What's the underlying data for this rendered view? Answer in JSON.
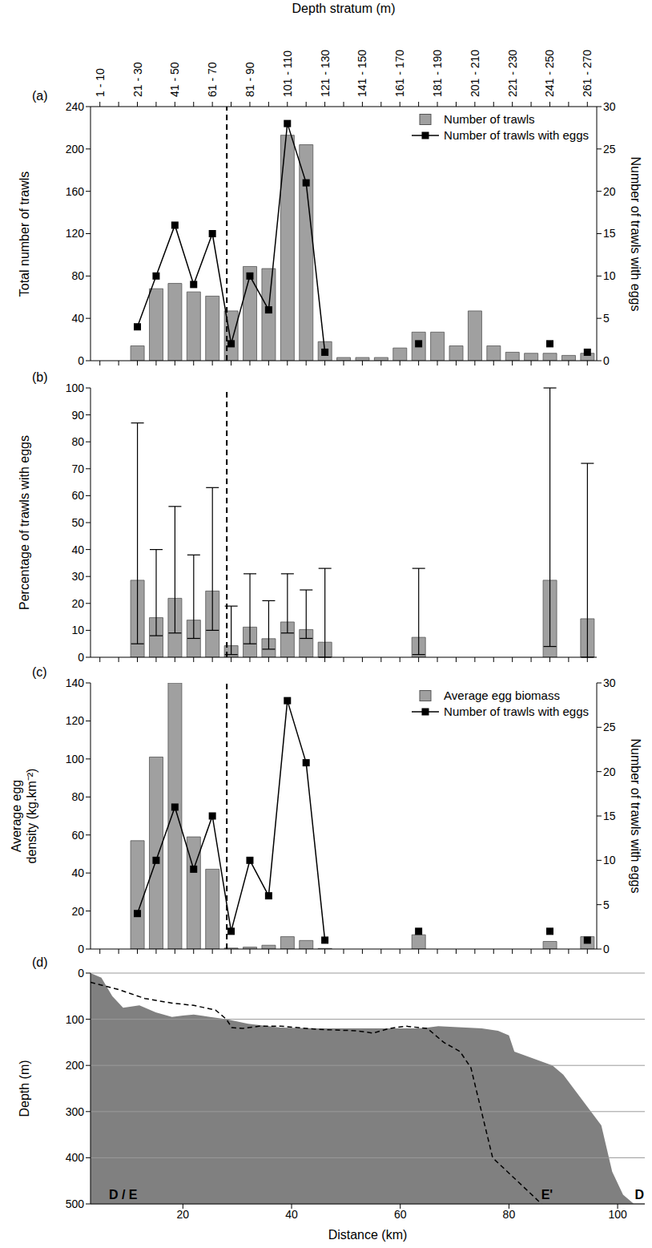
{
  "chart_data": [
    {
      "type": "bar",
      "panel_label": "(a)",
      "x_label": "Depth stratum (m)",
      "y_label": "Total number of trawls",
      "y2_label": "Number of trawls with eggs",
      "categories": [
        "1 - 10",
        null,
        "21 - 30",
        null,
        "41 - 50",
        null,
        "61 - 70",
        null,
        "81 - 90",
        null,
        "101 - 110",
        null,
        "121 - 130",
        null,
        "141 - 150",
        null,
        "161 - 170",
        null,
        "181 - 190",
        null,
        "201 - 210",
        null,
        "221 - 230",
        null,
        "241 - 250",
        null,
        "261 - 270"
      ],
      "series": [
        {
          "name": "Number of trawls",
          "type": "bar",
          "color": "#a0a0a0",
          "values": [
            null,
            null,
            14,
            68,
            73,
            65,
            61,
            47,
            89,
            87,
            213,
            204,
            18,
            3,
            3,
            3,
            12,
            27,
            27,
            14,
            47,
            14,
            8,
            7,
            7,
            5,
            7
          ]
        },
        {
          "name": "Number of trawls with eggs",
          "type": "line",
          "axis": "y2",
          "color": "#000000",
          "marker": "square",
          "values": [
            null,
            null,
            4,
            10,
            16,
            9,
            15,
            2,
            10,
            6,
            28,
            21,
            1,
            null,
            null,
            null,
            null,
            2,
            null,
            null,
            null,
            null,
            null,
            null,
            2,
            null,
            1
          ]
        }
      ],
      "ylim": [
        0,
        240
      ],
      "yticks": [
        0,
        40,
        80,
        120,
        160,
        200,
        240
      ],
      "y2lim": [
        0,
        30
      ],
      "y2ticks": [
        0,
        5,
        10,
        15,
        20,
        25,
        30
      ],
      "legend": "top-right",
      "divider_after": "61 - 70"
    },
    {
      "type": "bar",
      "panel_label": "(b)",
      "y_label": "Percentage of trawls with eggs",
      "categories": [
        "1 - 10",
        null,
        "21 - 30",
        null,
        "41 - 50",
        null,
        "61 - 70",
        null,
        "81 - 90",
        null,
        "101 - 110",
        null,
        "121 - 130",
        null,
        "141 - 150",
        null,
        "161 - 170",
        null,
        "181 - 190",
        null,
        "201 - 210",
        null,
        "221 - 230",
        null,
        "241 - 250",
        null,
        "261 - 270"
      ],
      "series": [
        {
          "name": "Percentage of trawls with eggs",
          "type": "bar",
          "color": "#a0a0a0",
          "values": [
            null,
            null,
            28.6,
            14.7,
            21.9,
            13.8,
            24.6,
            4.3,
            11.2,
            6.9,
            13.1,
            10.3,
            5.6,
            0,
            0,
            0,
            0,
            7.4,
            0,
            0,
            0,
            0,
            0,
            0,
            28.6,
            0,
            14.3
          ],
          "ci_lower": [
            null,
            null,
            5,
            8,
            9,
            7,
            10,
            1,
            5,
            3,
            9,
            7,
            0,
            null,
            null,
            null,
            null,
            1,
            null,
            null,
            null,
            null,
            null,
            null,
            4,
            null,
            0
          ],
          "ci_upper": [
            null,
            null,
            87,
            40,
            56,
            38,
            63,
            19,
            31,
            21,
            31,
            25,
            33,
            null,
            null,
            null,
            null,
            33,
            null,
            null,
            null,
            null,
            null,
            null,
            100,
            null,
            72
          ]
        }
      ],
      "ylim": [
        0,
        100
      ],
      "yticks": [
        0,
        10,
        20,
        30,
        40,
        50,
        60,
        70,
        80,
        90,
        100
      ],
      "tick_labels": "y",
      "divider_after": "61 - 70"
    },
    {
      "type": "bar",
      "panel_label": "(c)",
      "y_label": "Average egg density (kg.km⁻²)",
      "y2_label": "Number of trawls with eggs",
      "categories": [
        "1 - 10",
        null,
        "21 - 30",
        null,
        "41 - 50",
        null,
        "61 - 70",
        null,
        "81 - 90",
        null,
        "101 - 110",
        null,
        "121 - 130",
        null,
        "141 - 150",
        null,
        "161 - 170",
        null,
        "181 - 190",
        null,
        "201 - 210",
        null,
        "221 - 230",
        null,
        "241 - 250",
        null,
        "261 - 270"
      ],
      "series": [
        {
          "name": "Average egg biomass",
          "type": "bar",
          "color": "#a0a0a0",
          "values": [
            null,
            null,
            57,
            101,
            140,
            59,
            42,
            0.5,
            1,
            2,
            6.5,
            4.5,
            0.3,
            0,
            0,
            0,
            0,
            7.5,
            0,
            0,
            0,
            0,
            0,
            0,
            4,
            0,
            6.5
          ]
        },
        {
          "name": "Number of trawls with eggs",
          "type": "line",
          "axis": "y2",
          "color": "#000000",
          "marker": "square",
          "values": [
            null,
            null,
            4,
            10,
            16,
            9,
            15,
            2,
            10,
            6,
            28,
            21,
            1,
            null,
            null,
            null,
            null,
            2,
            null,
            null,
            null,
            null,
            null,
            null,
            2,
            null,
            1
          ]
        }
      ],
      "ylim": [
        0,
        140
      ],
      "yticks": [
        0,
        20,
        40,
        60,
        80,
        100,
        120,
        140
      ],
      "y2lim": [
        0,
        30
      ],
      "y2ticks": [
        0,
        5,
        10,
        15,
        20,
        25,
        30
      ],
      "tick_labels": "y",
      "legend": "top-right",
      "divider_after": "61 - 70"
    },
    {
      "type": "area",
      "panel_label": "(d)",
      "x_label": "Distance (km)",
      "y_label": "Depth (m)",
      "xlim": [
        3,
        105
      ],
      "xticks": [
        20,
        40,
        60,
        80,
        100
      ],
      "ylim": [
        0,
        500
      ],
      "yticks": [
        0,
        100,
        200,
        300,
        400,
        500
      ],
      "grid": true,
      "series": [
        {
          "type": "area",
          "color": "#808080",
          "x": [
            3,
            5,
            7,
            9,
            12,
            15,
            18,
            20,
            22,
            25,
            28,
            32,
            38,
            45,
            55,
            63,
            65,
            67,
            75,
            78,
            80,
            81,
            88,
            90,
            97,
            99,
            101,
            103
          ],
          "values": [
            0,
            10,
            50,
            75,
            70,
            85,
            95,
            92,
            90,
            95,
            100,
            110,
            118,
            120,
            120,
            120,
            118,
            115,
            120,
            125,
            135,
            170,
            200,
            220,
            330,
            430,
            480,
            500
          ]
        },
        {
          "type": "line",
          "color": "#000000",
          "line_style": "dashed",
          "x": [
            3,
            8,
            13,
            18,
            22,
            26,
            28,
            29,
            31,
            34,
            38,
            45,
            52,
            55,
            58,
            61,
            65,
            68,
            71,
            73,
            77,
            86
          ],
          "values": [
            20,
            35,
            55,
            65,
            70,
            80,
            100,
            118,
            120,
            115,
            115,
            122,
            125,
            130,
            120,
            115,
            120,
            150,
            170,
            205,
            400,
            500
          ]
        }
      ],
      "annotations": [
        {
          "text": "D / E",
          "x": 9,
          "y": 480
        },
        {
          "text": "E'",
          "x": 87,
          "y": 480
        },
        {
          "text": "D",
          "x": 104,
          "y": 480
        }
      ]
    }
  ]
}
